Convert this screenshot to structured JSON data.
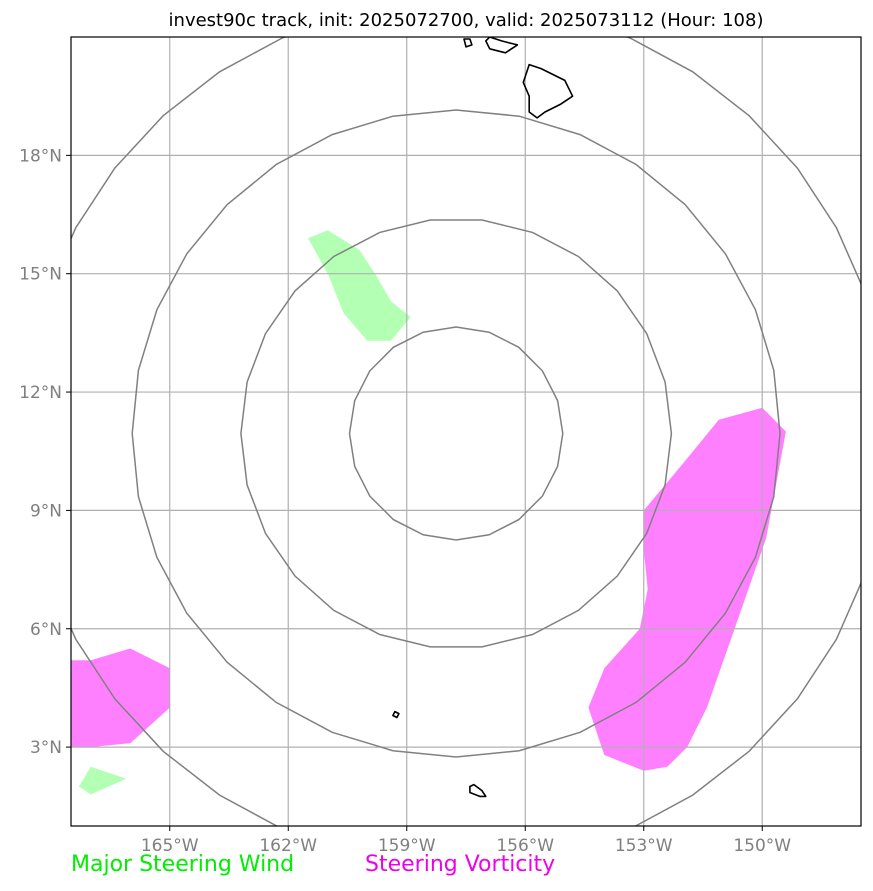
{
  "title": "invest90c track, init: 2025072700, valid: 2025073112 (Hour: 108)",
  "map": {
    "lon_range": [
      -167.5,
      -147.5
    ],
    "lat_range": [
      1.0,
      21.0
    ],
    "lon_ticks": [
      {
        "value": -165,
        "label": "165°W"
      },
      {
        "value": -162,
        "label": "162°W"
      },
      {
        "value": -159,
        "label": "159°W"
      },
      {
        "value": -156,
        "label": "156°W"
      },
      {
        "value": -153,
        "label": "153°W"
      },
      {
        "value": -150,
        "label": "150°W"
      }
    ],
    "lat_ticks": [
      {
        "value": 3,
        "label": "3°N"
      },
      {
        "value": 6,
        "label": "6°N"
      },
      {
        "value": 9,
        "label": "9°N"
      },
      {
        "value": 12,
        "label": "12°N"
      },
      {
        "value": 15,
        "label": "15°N"
      },
      {
        "value": 18,
        "label": "18°N"
      }
    ],
    "range_ring_center": {
      "lon": -157.75,
      "lat": 10.95
    },
    "range_rings_radius_deg": [
      2.7,
      5.45,
      8.2,
      10.95
    ],
    "colors": {
      "major_steering_wind": "#b3ffb3",
      "steering_vorticity": "#ff80ff",
      "rings": "#808080",
      "grid": "#b0b0b0",
      "coast": "#000000"
    },
    "green_regions": [
      {
        "name": "wind-area-north",
        "points": [
          [
            -161.5,
            15.9
          ],
          [
            -161.0,
            16.1
          ],
          [
            -160.2,
            15.6
          ],
          [
            -159.8,
            15.0
          ],
          [
            -159.4,
            14.3
          ],
          [
            -158.9,
            13.9
          ],
          [
            -159.4,
            13.3
          ],
          [
            -160.0,
            13.3
          ],
          [
            -160.6,
            14.0
          ],
          [
            -161.0,
            15.0
          ]
        ]
      },
      {
        "name": "wind-area-southwest",
        "points": [
          [
            -167.3,
            2.0
          ],
          [
            -167.0,
            2.5
          ],
          [
            -166.1,
            2.2
          ],
          [
            -167.0,
            1.8
          ]
        ]
      }
    ],
    "magenta_regions": [
      {
        "name": "vorticity-band-east",
        "points": [
          [
            -153.0,
            9.0
          ],
          [
            -152.0,
            10.2
          ],
          [
            -151.1,
            11.3
          ],
          [
            -150.0,
            11.6
          ],
          [
            -149.4,
            11.0
          ],
          [
            -149.9,
            8.3
          ],
          [
            -150.7,
            6.0
          ],
          [
            -151.4,
            4.0
          ],
          [
            -151.9,
            3.0
          ],
          [
            -152.4,
            2.5
          ],
          [
            -153.0,
            2.4
          ],
          [
            -154.0,
            2.8
          ],
          [
            -154.4,
            4.0
          ],
          [
            -154.0,
            5.0
          ],
          [
            -153.1,
            6.0
          ],
          [
            -152.9,
            7.0
          ],
          [
            -153.0,
            8.0
          ]
        ]
      },
      {
        "name": "vorticity-area-west",
        "points": [
          [
            -167.5,
            5.2
          ],
          [
            -167.0,
            5.2
          ],
          [
            -166.0,
            5.5
          ],
          [
            -165.0,
            5.0
          ],
          [
            -165.0,
            4.0
          ],
          [
            -166.0,
            3.1
          ],
          [
            -167.0,
            3.0
          ],
          [
            -167.5,
            3.0
          ]
        ]
      }
    ],
    "islands": [
      {
        "name": "hawaii-big-island",
        "points": [
          [
            -155.9,
            20.3
          ],
          [
            -155.6,
            20.2
          ],
          [
            -155.0,
            19.9
          ],
          [
            -154.8,
            19.5
          ],
          [
            -155.1,
            19.3
          ],
          [
            -155.5,
            19.1
          ],
          [
            -155.7,
            18.95
          ],
          [
            -155.9,
            19.1
          ],
          [
            -155.9,
            19.5
          ],
          [
            -156.05,
            19.85
          ]
        ]
      },
      {
        "name": "maui",
        "points": [
          [
            -156.9,
            21.0
          ],
          [
            -156.6,
            20.9
          ],
          [
            -156.2,
            20.8
          ],
          [
            -156.5,
            20.6
          ],
          [
            -156.9,
            20.7
          ],
          [
            -157.0,
            20.9
          ]
        ]
      },
      {
        "name": "kahoolawe-fragment",
        "points": [
          [
            -157.55,
            20.95
          ],
          [
            -157.4,
            20.95
          ],
          [
            -157.35,
            20.8
          ],
          [
            -157.5,
            20.75
          ]
        ]
      },
      {
        "name": "islet-south-central",
        "points": [
          [
            -159.3,
            3.9
          ],
          [
            -159.2,
            3.85
          ],
          [
            -159.25,
            3.75
          ],
          [
            -159.35,
            3.8
          ]
        ]
      },
      {
        "name": "islet-south",
        "points": [
          [
            -157.4,
            2.0
          ],
          [
            -157.3,
            2.05
          ],
          [
            -157.1,
            1.9
          ],
          [
            -157.0,
            1.75
          ],
          [
            -157.15,
            1.75
          ],
          [
            -157.4,
            1.85
          ]
        ]
      }
    ]
  },
  "legend": {
    "major_steering_wind": "Major Steering Wind",
    "steering_vorticity": "Steering Vorticity"
  }
}
